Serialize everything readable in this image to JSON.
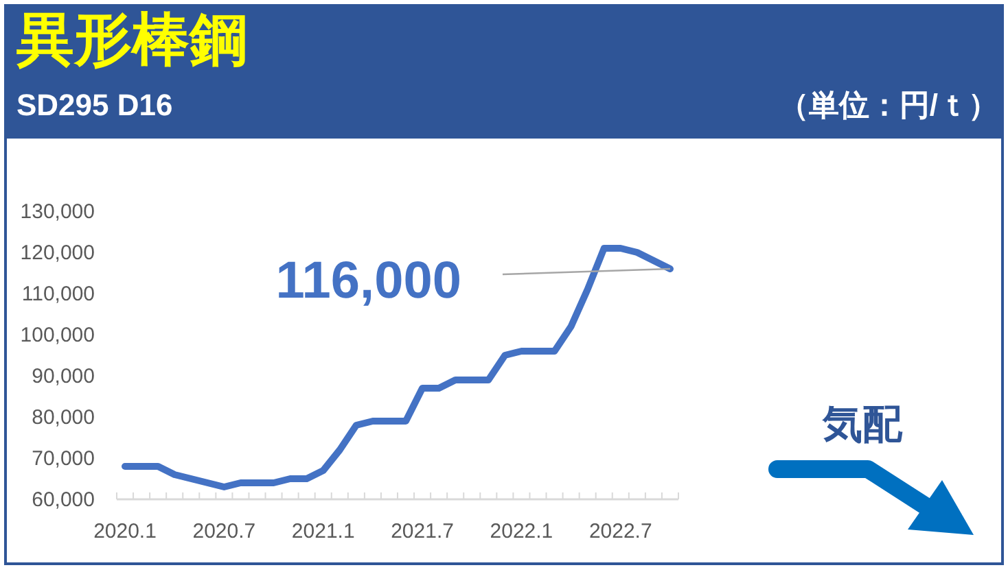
{
  "chart_data": {
    "type": "line",
    "title": "異形棒鋼",
    "subtitle": "SD295 D16",
    "annotations": [
      "（単位：円/ｔ）",
      "気配"
    ],
    "categories": [
      "2020.1",
      null,
      null,
      null,
      null,
      null,
      "2020.7",
      null,
      null,
      null,
      null,
      null,
      "2021.1",
      null,
      null,
      null,
      null,
      null,
      "2021.7",
      null,
      null,
      null,
      null,
      null,
      "2022.1",
      null,
      null,
      null,
      null,
      null,
      "2022.7",
      null,
      null,
      null
    ],
    "values": [
      68000,
      68000,
      68000,
      66000,
      65000,
      64000,
      63000,
      64000,
      64000,
      64000,
      65000,
      65000,
      67000,
      72000,
      78000,
      79000,
      79000,
      79000,
      87000,
      87000,
      89000,
      89000,
      89000,
      95000,
      96000,
      96000,
      96000,
      102000,
      111000,
      121000,
      121000,
      120000,
      118000,
      116000
    ],
    "value_labels": [
      null,
      null,
      null,
      null,
      null,
      null,
      null,
      null,
      null,
      null,
      null,
      null,
      null,
      null,
      null,
      null,
      null,
      null,
      null,
      null,
      null,
      null,
      null,
      null,
      null,
      null,
      null,
      null,
      null,
      null,
      null,
      null,
      null,
      "116,000"
    ],
    "color": "#4472c4",
    "ylim": [
      60000,
      130000
    ],
    "yticks": [
      {
        "value": 60000,
        "label": "60,000"
      },
      {
        "value": 70000,
        "label": "70,000"
      },
      {
        "value": 80000,
        "label": "80,000"
      },
      {
        "value": 90000,
        "label": "90,000"
      },
      {
        "value": 100000,
        "label": "100,000"
      },
      {
        "value": 110000,
        "label": "110,000"
      },
      {
        "value": 120000,
        "label": "120,000"
      },
      {
        "value": 130000,
        "label": "130,000"
      }
    ]
  }
}
